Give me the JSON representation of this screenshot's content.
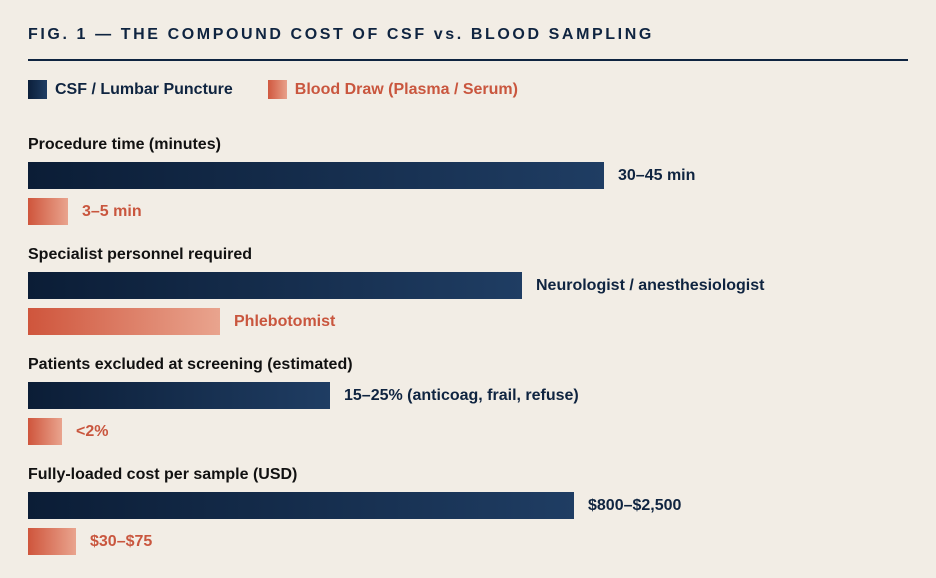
{
  "figure": {
    "title": "FIG. 1 — THE COMPOUND COST OF CSF vs. BLOOD SAMPLING"
  },
  "colors": {
    "csf": "#0f2440",
    "blood": "#c9563e",
    "background": "#f2ede5"
  },
  "chart_data": {
    "type": "bar",
    "orientation": "horizontal",
    "title": "FIG. 1 — THE COMPOUND COST OF CSF vs. BLOOD SAMPLING",
    "legend": {
      "placement": "top-left",
      "entries": [
        "CSF / Lumbar Puncture",
        "Blood Draw (Plasma / Serum)"
      ]
    },
    "series": [
      {
        "name": "CSF / Lumbar Puncture",
        "values": [
          0.655,
          0.561,
          0.343,
          0.621
        ]
      },
      {
        "name": "Blood Draw (Plasma / Serum)",
        "values": [
          0.046,
          0.218,
          0.039,
          0.054
        ]
      }
    ],
    "categories": [
      "Procedure time (minutes)",
      "Specialist personnel required",
      "Patients excluded at screening (estimated)",
      "Fully-loaded cost per sample (USD)"
    ],
    "groups": [
      {
        "title": "Procedure time (minutes)",
        "csf": {
          "label": "30–45 min",
          "value": 0.655
        },
        "blood": {
          "label": "3–5 min",
          "value": 0.046
        }
      },
      {
        "title": "Specialist personnel required",
        "csf": {
          "label": "Neurologist / anesthesiologist",
          "value": 0.561
        },
        "blood": {
          "label": "Phlebotomist",
          "value": 0.218
        }
      },
      {
        "title": "Patients excluded at screening (estimated)",
        "csf": {
          "label": "15–25% (anticoag, frail, refuse)",
          "value": 0.343
        },
        "blood": {
          "label": "<2%",
          "value": 0.039
        }
      },
      {
        "title": "Fully-loaded cost per sample (USD)",
        "csf": {
          "label": "$800–$2,500",
          "value": 0.621
        },
        "blood": {
          "label": "$30–$75",
          "value": 0.054
        }
      }
    ],
    "xlabel": "",
    "ylabel": "",
    "grid": false
  }
}
